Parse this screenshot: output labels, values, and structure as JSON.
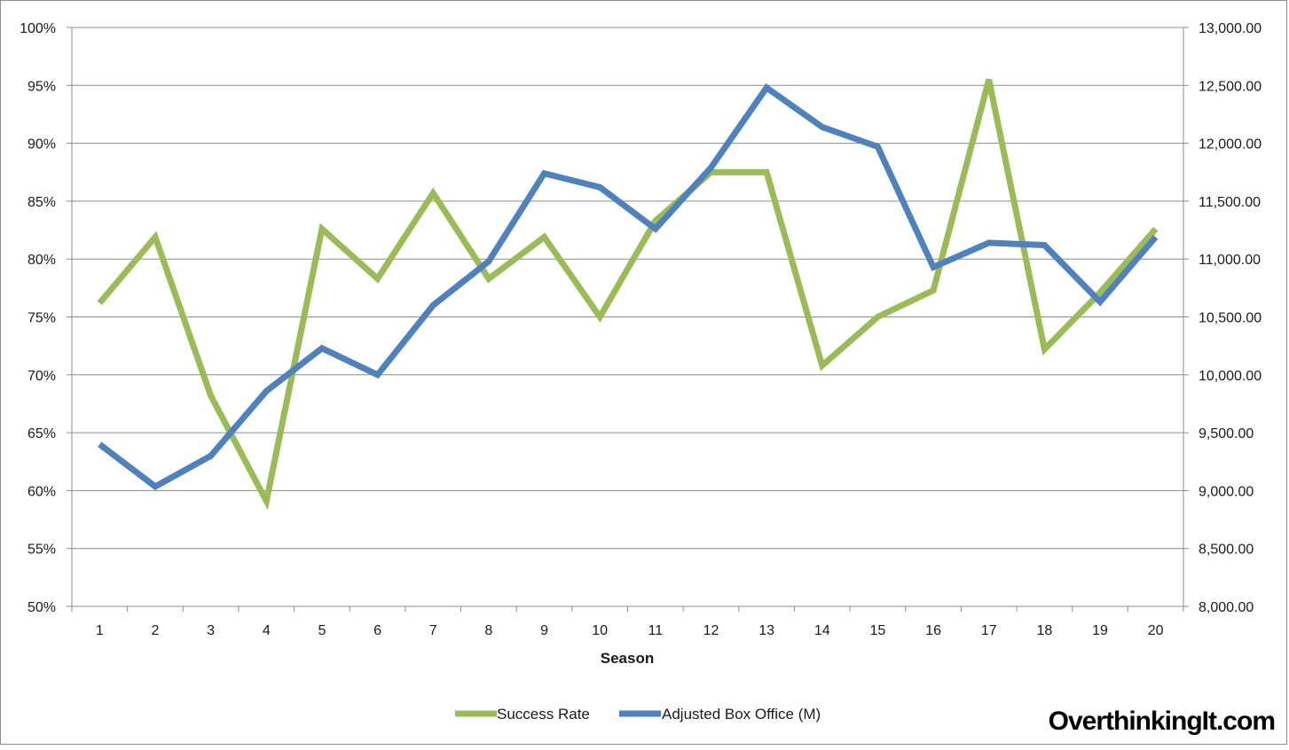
{
  "chart_data": {
    "type": "line",
    "xlabel": "Season",
    "categories": [
      "1",
      "2",
      "3",
      "4",
      "5",
      "6",
      "7",
      "8",
      "9",
      "10",
      "11",
      "12",
      "13",
      "14",
      "15",
      "16",
      "17",
      "18",
      "19",
      "20"
    ],
    "y_left": {
      "ylim": [
        50,
        100
      ],
      "ticks": [
        "50%",
        "55%",
        "60%",
        "65%",
        "70%",
        "75%",
        "80%",
        "85%",
        "90%",
        "95%",
        "100%"
      ]
    },
    "y_right": {
      "ylim": [
        8000,
        13000
      ],
      "ticks": [
        "8,000.00",
        "8,500.00",
        "9,000.00",
        "9,500.00",
        "10,000.00",
        "10,500.00",
        "11,000.00",
        "11,500.00",
        "12,000.00",
        "12,500.00",
        "13,000.00"
      ]
    },
    "grid": true,
    "legend_position": "bottom",
    "series": [
      {
        "name": "Success Rate",
        "axis": "left",
        "color": "#9BBB59",
        "values": [
          76.2,
          81.9,
          68.2,
          59.1,
          82.6,
          78.3,
          85.7,
          78.3,
          81.9,
          75.0,
          83.3,
          87.5,
          87.5,
          70.8,
          75.0,
          77.3,
          95.5,
          72.2,
          77.1,
          82.6
        ]
      },
      {
        "name": "Adjusted Box Office (M)",
        "axis": "right",
        "color": "#4F81BD",
        "values": [
          9400,
          9035,
          9300,
          9860,
          10230,
          10000,
          10600,
          10980,
          11740,
          11620,
          11260,
          11790,
          12480,
          12140,
          11970,
          10930,
          11140,
          11120,
          10630,
          11190
        ]
      }
    ]
  },
  "watermark": "OverthinkingIt.com"
}
